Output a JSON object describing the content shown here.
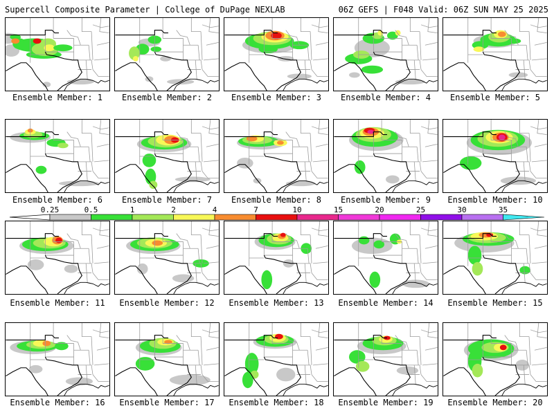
{
  "header": {
    "left": "Supercell Composite Parameter | College of DuPage NEXLAB",
    "right": "06Z GEFS | F048 Valid: 06Z SUN MAY 25 2025"
  },
  "colorbar": {
    "levels": [
      {
        "label": "0.25",
        "color": "#c8c8c8"
      },
      {
        "label": "0.5",
        "color": "#38e038"
      },
      {
        "label": "1",
        "color": "#a4e858"
      },
      {
        "label": "2",
        "color": "#f8f858"
      },
      {
        "label": "4",
        "color": "#f88c30"
      },
      {
        "label": "7",
        "color": "#e81010"
      },
      {
        "label": "10",
        "color": "#e8288c"
      },
      {
        "label": "15",
        "color": "#f038d8"
      },
      {
        "label": "20",
        "color": "#f028f0"
      },
      {
        "label": "25",
        "color": "#9010e8"
      },
      {
        "label": "30",
        "color": "#b870f0"
      },
      {
        "label": "35",
        "color": "#40e8f0"
      }
    ]
  },
  "panels": [
    {
      "label": "Ensemble Member: 1"
    },
    {
      "label": "Ensemble Member: 2"
    },
    {
      "label": "Ensemble Member: 3"
    },
    {
      "label": "Ensemble Member: 4"
    },
    {
      "label": "Ensemble Member: 5"
    },
    {
      "label": "Ensemble Member: 6"
    },
    {
      "label": "Ensemble Member: 7"
    },
    {
      "label": "Ensemble Member: 8"
    },
    {
      "label": "Ensemble Member: 9"
    },
    {
      "label": "Ensemble Member: 10"
    },
    {
      "label": "Ensemble Member: 11"
    },
    {
      "label": "Ensemble Member: 12"
    },
    {
      "label": "Ensemble Member: 13"
    },
    {
      "label": "Ensemble Member: 14"
    },
    {
      "label": "Ensemble Member: 15"
    },
    {
      "label": "Ensemble Member: 16"
    },
    {
      "label": "Ensemble Member: 17"
    },
    {
      "label": "Ensemble Member: 18"
    },
    {
      "label": "Ensemble Member: 19"
    },
    {
      "label": "Ensemble Member: 20"
    }
  ],
  "colors": {
    "gray": "#c8c8c8",
    "green": "#38e038",
    "lime": "#a4e858",
    "yellow": "#f8f858",
    "orange": "#f88c30",
    "red": "#e81010",
    "magenta": "#e8288c",
    "border": "#000000",
    "state": "#9a9a9a"
  }
}
